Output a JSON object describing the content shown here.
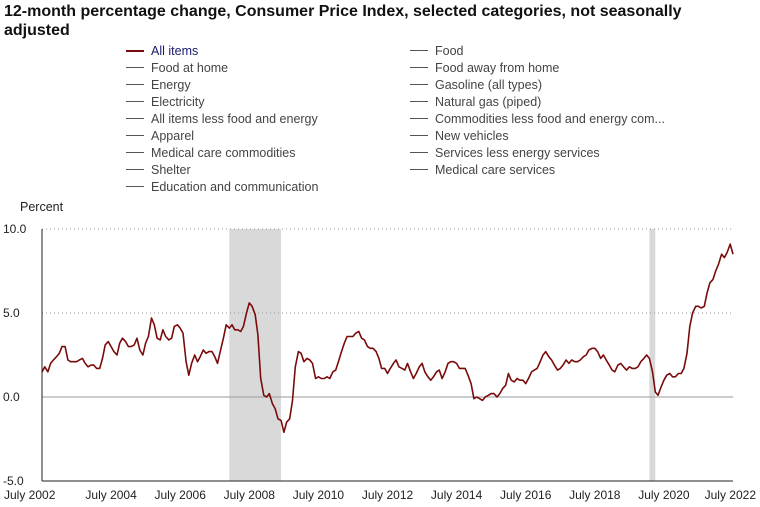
{
  "chart_data": {
    "type": "line",
    "title": "12-month percentage change, Consumer Price Index, selected categories, not seasonally adjusted",
    "ylabel": "Percent",
    "xlabel": "",
    "ylim": [
      -5.0,
      10.0
    ],
    "yticks": [
      {
        "value": 10.0,
        "label": "10.0"
      },
      {
        "value": 5.0,
        "label": "5.0"
      },
      {
        "value": 0.0,
        "label": "0.0"
      },
      {
        "value": -5.0,
        "label": "-5.0"
      }
    ],
    "xlim": [
      2002.5,
      2022.5
    ],
    "xticks": [
      {
        "value": 2002.5,
        "label": "July 2002"
      },
      {
        "value": 2004.5,
        "label": "July 2004"
      },
      {
        "value": 2006.5,
        "label": "July 2006"
      },
      {
        "value": 2008.5,
        "label": "July 2008"
      },
      {
        "value": 2010.5,
        "label": "July 2010"
      },
      {
        "value": 2012.5,
        "label": "July 2012"
      },
      {
        "value": 2014.5,
        "label": "July 2014"
      },
      {
        "value": 2016.5,
        "label": "July 2016"
      },
      {
        "value": 2018.5,
        "label": "July 2018"
      },
      {
        "value": 2020.5,
        "label": "July 2020"
      },
      {
        "value": 2022.5,
        "label": "July 2022"
      }
    ],
    "recessions": [
      {
        "start": 2007.92,
        "end": 2009.42
      },
      {
        "start": 2020.08,
        "end": 2020.25
      }
    ],
    "legend": {
      "left": [
        "All items",
        "Food at home",
        "Energy",
        "Electricity",
        "All items less food and energy",
        "Apparel",
        "Medical care commodities",
        "Shelter",
        "Education and communication"
      ],
      "right": [
        "Food",
        "Food away from home",
        "Gasoline (all types)",
        "Natural gas (piped)",
        "Commodities less food and energy com...",
        "New vehicles",
        "Services less energy services",
        "Medical care services"
      ]
    },
    "series": [
      {
        "name": "All items",
        "color": "#7a0b0b",
        "points": [
          [
            2002.5,
            1.5
          ],
          [
            2002.58,
            1.8
          ],
          [
            2002.67,
            1.5
          ],
          [
            2002.75,
            2.0
          ],
          [
            2002.83,
            2.2
          ],
          [
            2002.92,
            2.4
          ],
          [
            2003.0,
            2.6
          ],
          [
            2003.08,
            3.0
          ],
          [
            2003.17,
            3.0
          ],
          [
            2003.25,
            2.2
          ],
          [
            2003.33,
            2.1
          ],
          [
            2003.42,
            2.1
          ],
          [
            2003.5,
            2.1
          ],
          [
            2003.58,
            2.2
          ],
          [
            2003.67,
            2.3
          ],
          [
            2003.75,
            2.0
          ],
          [
            2003.83,
            1.8
          ],
          [
            2003.92,
            1.9
          ],
          [
            2004.0,
            1.9
          ],
          [
            2004.08,
            1.7
          ],
          [
            2004.17,
            1.7
          ],
          [
            2004.25,
            2.3
          ],
          [
            2004.33,
            3.1
          ],
          [
            2004.42,
            3.3
          ],
          [
            2004.5,
            3.0
          ],
          [
            2004.58,
            2.7
          ],
          [
            2004.67,
            2.5
          ],
          [
            2004.75,
            3.2
          ],
          [
            2004.83,
            3.5
          ],
          [
            2004.92,
            3.3
          ],
          [
            2005.0,
            3.0
          ],
          [
            2005.08,
            3.0
          ],
          [
            2005.17,
            3.1
          ],
          [
            2005.25,
            3.5
          ],
          [
            2005.33,
            2.8
          ],
          [
            2005.42,
            2.5
          ],
          [
            2005.5,
            3.2
          ],
          [
            2005.58,
            3.6
          ],
          [
            2005.67,
            4.7
          ],
          [
            2005.75,
            4.3
          ],
          [
            2005.83,
            3.5
          ],
          [
            2005.92,
            3.4
          ],
          [
            2006.0,
            4.0
          ],
          [
            2006.08,
            3.6
          ],
          [
            2006.17,
            3.4
          ],
          [
            2006.25,
            3.5
          ],
          [
            2006.33,
            4.2
          ],
          [
            2006.42,
            4.3
          ],
          [
            2006.5,
            4.1
          ],
          [
            2006.58,
            3.8
          ],
          [
            2006.67,
            2.1
          ],
          [
            2006.75,
            1.3
          ],
          [
            2006.83,
            2.0
          ],
          [
            2006.92,
            2.5
          ],
          [
            2007.0,
            2.1
          ],
          [
            2007.08,
            2.4
          ],
          [
            2007.17,
            2.8
          ],
          [
            2007.25,
            2.6
          ],
          [
            2007.33,
            2.7
          ],
          [
            2007.42,
            2.7
          ],
          [
            2007.5,
            2.4
          ],
          [
            2007.58,
            2.0
          ],
          [
            2007.67,
            2.8
          ],
          [
            2007.75,
            3.5
          ],
          [
            2007.83,
            4.3
          ],
          [
            2007.92,
            4.1
          ],
          [
            2008.0,
            4.3
          ],
          [
            2008.08,
            4.0
          ],
          [
            2008.17,
            4.0
          ],
          [
            2008.25,
            3.9
          ],
          [
            2008.33,
            4.2
          ],
          [
            2008.42,
            5.0
          ],
          [
            2008.5,
            5.6
          ],
          [
            2008.58,
            5.4
          ],
          [
            2008.67,
            4.9
          ],
          [
            2008.75,
            3.7
          ],
          [
            2008.83,
            1.1
          ],
          [
            2008.92,
            0.1
          ],
          [
            2009.0,
            0.0
          ],
          [
            2009.08,
            0.2
          ],
          [
            2009.17,
            -0.4
          ],
          [
            2009.25,
            -0.7
          ],
          [
            2009.33,
            -1.3
          ],
          [
            2009.42,
            -1.4
          ],
          [
            2009.5,
            -2.1
          ],
          [
            2009.58,
            -1.5
          ],
          [
            2009.67,
            -1.3
          ],
          [
            2009.75,
            -0.2
          ],
          [
            2009.83,
            1.8
          ],
          [
            2009.92,
            2.7
          ],
          [
            2010.0,
            2.6
          ],
          [
            2010.08,
            2.1
          ],
          [
            2010.17,
            2.3
          ],
          [
            2010.25,
            2.2
          ],
          [
            2010.33,
            2.0
          ],
          [
            2010.42,
            1.1
          ],
          [
            2010.5,
            1.2
          ],
          [
            2010.58,
            1.1
          ],
          [
            2010.67,
            1.1
          ],
          [
            2010.75,
            1.2
          ],
          [
            2010.83,
            1.1
          ],
          [
            2010.92,
            1.5
          ],
          [
            2011.0,
            1.6
          ],
          [
            2011.08,
            2.1
          ],
          [
            2011.17,
            2.7
          ],
          [
            2011.25,
            3.2
          ],
          [
            2011.33,
            3.6
          ],
          [
            2011.42,
            3.6
          ],
          [
            2011.5,
            3.6
          ],
          [
            2011.58,
            3.8
          ],
          [
            2011.67,
            3.9
          ],
          [
            2011.75,
            3.5
          ],
          [
            2011.83,
            3.4
          ],
          [
            2011.92,
            3.0
          ],
          [
            2012.0,
            2.9
          ],
          [
            2012.08,
            2.9
          ],
          [
            2012.17,
            2.7
          ],
          [
            2012.25,
            2.3
          ],
          [
            2012.33,
            1.7
          ],
          [
            2012.42,
            1.7
          ],
          [
            2012.5,
            1.4
          ],
          [
            2012.58,
            1.7
          ],
          [
            2012.67,
            2.0
          ],
          [
            2012.75,
            2.2
          ],
          [
            2012.83,
            1.8
          ],
          [
            2012.92,
            1.7
          ],
          [
            2013.0,
            1.6
          ],
          [
            2013.08,
            2.0
          ],
          [
            2013.17,
            1.5
          ],
          [
            2013.25,
            1.1
          ],
          [
            2013.33,
            1.4
          ],
          [
            2013.42,
            1.8
          ],
          [
            2013.5,
            2.0
          ],
          [
            2013.58,
            1.5
          ],
          [
            2013.67,
            1.2
          ],
          [
            2013.75,
            1.0
          ],
          [
            2013.83,
            1.2
          ],
          [
            2013.92,
            1.5
          ],
          [
            2014.0,
            1.6
          ],
          [
            2014.08,
            1.1
          ],
          [
            2014.17,
            1.5
          ],
          [
            2014.25,
            2.0
          ],
          [
            2014.33,
            2.1
          ],
          [
            2014.42,
            2.1
          ],
          [
            2014.5,
            2.0
          ],
          [
            2014.58,
            1.7
          ],
          [
            2014.67,
            1.7
          ],
          [
            2014.75,
            1.7
          ],
          [
            2014.83,
            1.3
          ],
          [
            2014.92,
            0.8
          ],
          [
            2015.0,
            -0.1
          ],
          [
            2015.08,
            0.0
          ],
          [
            2015.17,
            -0.1
          ],
          [
            2015.25,
            -0.2
          ],
          [
            2015.33,
            0.0
          ],
          [
            2015.42,
            0.1
          ],
          [
            2015.5,
            0.2
          ],
          [
            2015.58,
            0.2
          ],
          [
            2015.67,
            0.0
          ],
          [
            2015.75,
            0.2
          ],
          [
            2015.83,
            0.5
          ],
          [
            2015.92,
            0.7
          ],
          [
            2016.0,
            1.4
          ],
          [
            2016.08,
            1.0
          ],
          [
            2016.17,
            0.9
          ],
          [
            2016.25,
            1.1
          ],
          [
            2016.33,
            1.0
          ],
          [
            2016.42,
            1.0
          ],
          [
            2016.5,
            0.8
          ],
          [
            2016.58,
            1.1
          ],
          [
            2016.67,
            1.5
          ],
          [
            2016.75,
            1.6
          ],
          [
            2016.83,
            1.7
          ],
          [
            2016.92,
            2.1
          ],
          [
            2017.0,
            2.5
          ],
          [
            2017.08,
            2.7
          ],
          [
            2017.17,
            2.4
          ],
          [
            2017.25,
            2.2
          ],
          [
            2017.33,
            1.9
          ],
          [
            2017.42,
            1.6
          ],
          [
            2017.5,
            1.7
          ],
          [
            2017.58,
            1.9
          ],
          [
            2017.67,
            2.2
          ],
          [
            2017.75,
            2.0
          ],
          [
            2017.83,
            2.2
          ],
          [
            2017.92,
            2.1
          ],
          [
            2018.0,
            2.1
          ],
          [
            2018.08,
            2.2
          ],
          [
            2018.17,
            2.4
          ],
          [
            2018.25,
            2.5
          ],
          [
            2018.33,
            2.8
          ],
          [
            2018.42,
            2.9
          ],
          [
            2018.5,
            2.9
          ],
          [
            2018.58,
            2.7
          ],
          [
            2018.67,
            2.3
          ],
          [
            2018.75,
            2.5
          ],
          [
            2018.83,
            2.2
          ],
          [
            2018.92,
            1.9
          ],
          [
            2019.0,
            1.6
          ],
          [
            2019.08,
            1.5
          ],
          [
            2019.17,
            1.9
          ],
          [
            2019.25,
            2.0
          ],
          [
            2019.33,
            1.8
          ],
          [
            2019.42,
            1.6
          ],
          [
            2019.5,
            1.8
          ],
          [
            2019.58,
            1.7
          ],
          [
            2019.67,
            1.7
          ],
          [
            2019.75,
            1.8
          ],
          [
            2019.83,
            2.1
          ],
          [
            2019.92,
            2.3
          ],
          [
            2020.0,
            2.5
          ],
          [
            2020.08,
            2.3
          ],
          [
            2020.17,
            1.5
          ],
          [
            2020.25,
            0.3
          ],
          [
            2020.33,
            0.1
          ],
          [
            2020.42,
            0.6
          ],
          [
            2020.5,
            1.0
          ],
          [
            2020.58,
            1.3
          ],
          [
            2020.67,
            1.4
          ],
          [
            2020.75,
            1.2
          ],
          [
            2020.83,
            1.2
          ],
          [
            2020.92,
            1.4
          ],
          [
            2021.0,
            1.4
          ],
          [
            2021.08,
            1.7
          ],
          [
            2021.17,
            2.6
          ],
          [
            2021.25,
            4.2
          ],
          [
            2021.33,
            5.0
          ],
          [
            2021.42,
            5.4
          ],
          [
            2021.5,
            5.4
          ],
          [
            2021.58,
            5.3
          ],
          [
            2021.67,
            5.4
          ],
          [
            2021.75,
            6.2
          ],
          [
            2021.83,
            6.8
          ],
          [
            2021.92,
            7.0
          ],
          [
            2022.0,
            7.5
          ],
          [
            2022.08,
            7.9
          ],
          [
            2022.17,
            8.5
          ],
          [
            2022.25,
            8.3
          ],
          [
            2022.33,
            8.6
          ],
          [
            2022.42,
            9.1
          ],
          [
            2022.5,
            8.5
          ]
        ]
      }
    ]
  }
}
